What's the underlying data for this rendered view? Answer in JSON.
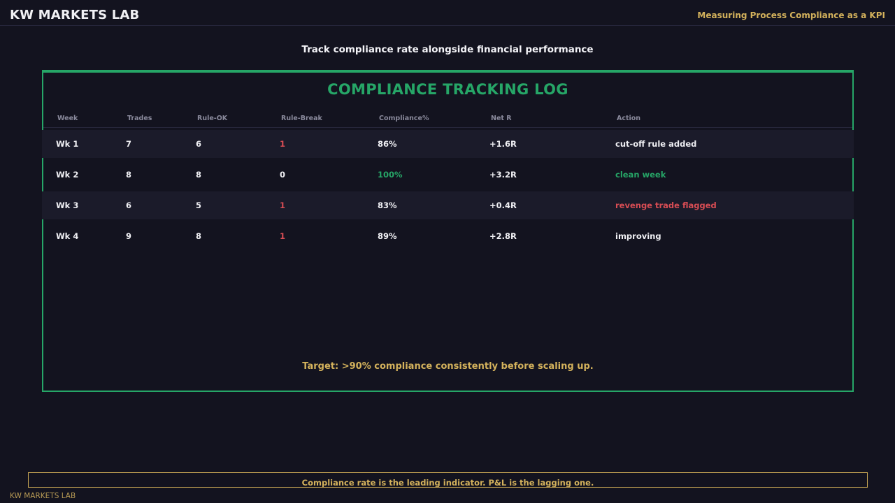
{
  "header": {
    "brand": "KW MARKETS LAB",
    "title": "Measuring Process Compliance as a KPI"
  },
  "subtitle": "Track compliance rate alongside financial performance",
  "panel": {
    "title": "COMPLIANCE TRACKING LOG",
    "columns": [
      "Week",
      "Trades",
      "Rule-OK",
      "Rule-Break",
      "Compliance%",
      "Net R",
      "Action"
    ],
    "rows": [
      [
        "Wk 1",
        "7",
        "6",
        "1",
        "86%",
        "+1.6R",
        "cut-off rule added"
      ],
      [
        "Wk 2",
        "8",
        "8",
        "0",
        "100%",
        "+3.2R",
        "clean week"
      ],
      [
        "Wk 3",
        "6",
        "5",
        "1",
        "83%",
        "+0.4R",
        "revenge trade flagged"
      ],
      [
        "Wk 4",
        "9",
        "8",
        "1",
        "89%",
        "+2.8R",
        "improving"
      ]
    ],
    "target": "Target: >90% compliance consistently before scaling up."
  },
  "footer": {
    "note": "Compliance rate is the leading indicator. P&L is the lagging one.",
    "brand": "KW MARKETS LAB"
  },
  "colors": {
    "background": "#13131f",
    "accent_green": "#26a667",
    "accent_gold": "#d4b25c",
    "alert_red": "#d94d54"
  }
}
